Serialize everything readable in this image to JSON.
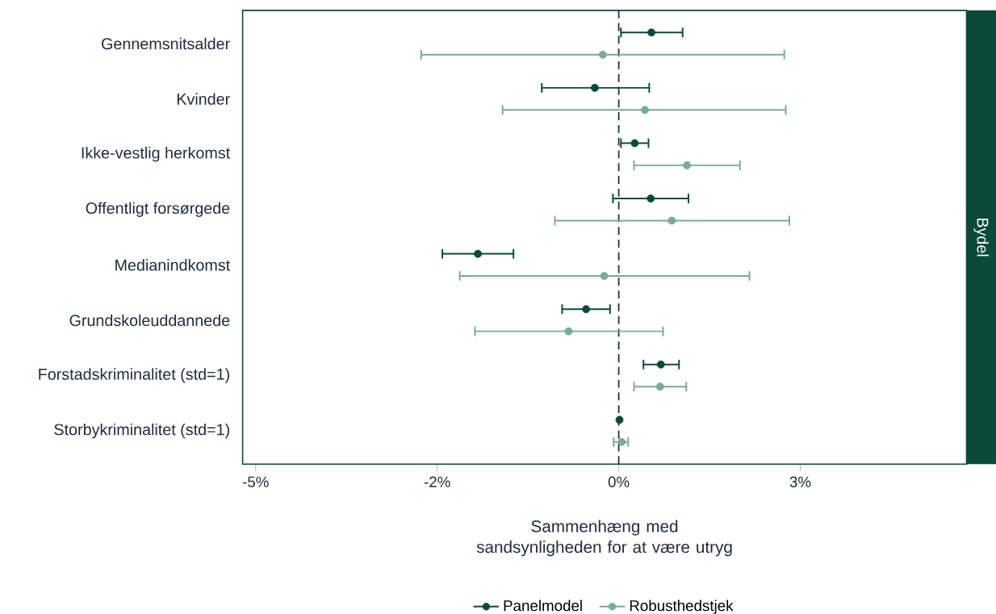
{
  "chart_data": {
    "type": "scatter",
    "orientation": "horizontal",
    "categories": [
      "Gennemsnitsalder",
      "Kvinder",
      "Ikke-vestlig herkomst",
      "Offentligt forsørgede",
      "Medianindkomst",
      "Grundskoleuddannede",
      "Forstadskriminalitet (std=1)",
      "Storbykriminalitet (std=1)"
    ],
    "xlim": [
      -5.18,
      4.79
    ],
    "xticks": [
      {
        "value": -5,
        "label": "-5%"
      },
      {
        "value": -2.5,
        "label": "-2%"
      },
      {
        "value": 0,
        "label": "0%"
      },
      {
        "value": 2.5,
        "label": "3%"
      }
    ],
    "xlabel": "Sammenhæng med sandsynligheden for at være utryg",
    "annotations": [
      "Bydel"
    ],
    "ref_lines": [
      {
        "axis": "x",
        "value": 0,
        "line_style": "dashed",
        "color": "#1f2d3d"
      }
    ],
    "legend": "bottom",
    "marker": "circle",
    "series": [
      {
        "name": "Panelmodel",
        "color": "#0b4a3a",
        "values": [
          0.45,
          -0.33,
          0.22,
          0.44,
          -1.94,
          -0.45,
          0.58,
          0.01
        ],
        "errors": [
          [
            0.03,
            0.88
          ],
          [
            -1.06,
            0.42
          ],
          [
            0.03,
            0.41
          ],
          [
            -0.08,
            0.96
          ],
          [
            -2.43,
            -1.45
          ],
          [
            -0.78,
            -0.12
          ],
          [
            0.34,
            0.83
          ],
          null
        ]
      },
      {
        "name": "Robusthedstjek",
        "color": "#7aaa99",
        "values": [
          -0.22,
          0.36,
          0.94,
          0.73,
          -0.2,
          -0.69,
          0.57,
          0.04
        ],
        "errors": [
          [
            -2.72,
            2.28
          ],
          [
            -1.6,
            2.3
          ],
          [
            0.21,
            1.67
          ],
          [
            -0.88,
            2.35
          ],
          [
            -2.19,
            1.8
          ],
          [
            -1.98,
            0.61
          ],
          [
            0.21,
            0.93
          ],
          [
            -0.07,
            0.13
          ]
        ]
      }
    ]
  }
}
